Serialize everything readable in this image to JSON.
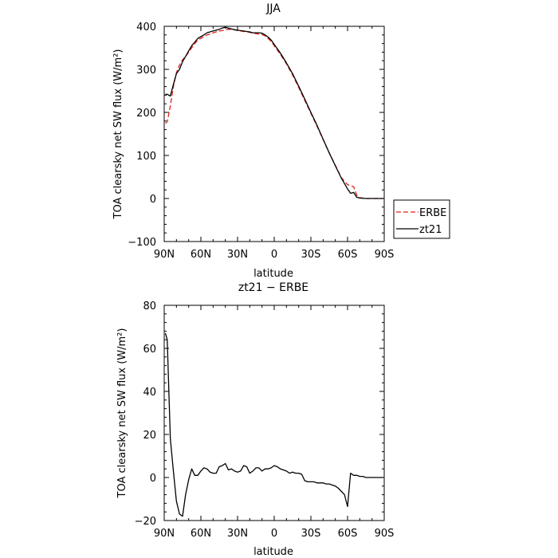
{
  "chart_data": [
    {
      "type": "line",
      "title": "JJA",
      "xlabel": "latitude",
      "ylabel": "TOA clearsky net SW flux (W/m²)",
      "ylim": [
        -100,
        400
      ],
      "xlim": [
        90,
        -90
      ],
      "x_ticks": [
        90,
        60,
        30,
        0,
        -30,
        -60,
        -90
      ],
      "x_tick_labels": [
        "90N",
        "60N",
        "30N",
        "0",
        "30S",
        "60S",
        "90S"
      ],
      "y_ticks": [
        -100,
        0,
        100,
        200,
        300,
        400
      ],
      "y_tick_labels": [
        "−100",
        "0",
        "100",
        "200",
        "300",
        "400"
      ],
      "legend_position": "right-outside",
      "series": [
        {
          "name": "ERBE",
          "color": "#e0201b",
          "dash": "dashed",
          "x": [
            89,
            87.5,
            85,
            82.5,
            80,
            77.5,
            75,
            72.5,
            70,
            67.5,
            65,
            62.5,
            60,
            57.5,
            55,
            52.5,
            50,
            47.5,
            45,
            42.5,
            40,
            37.5,
            35,
            32.5,
            30,
            27.5,
            25,
            22.5,
            20,
            17.5,
            15,
            12.5,
            10,
            7.5,
            5,
            2.5,
            0,
            -5,
            -10,
            -15,
            -20,
            -25,
            -30,
            -35,
            -40,
            -45,
            -50,
            -55,
            -60,
            -62.5,
            -65,
            -67.5,
            -70,
            -75,
            -80,
            -85,
            -89
          ],
          "y": [
            175,
            178,
            215,
            260,
            292,
            310,
            322,
            330,
            340,
            350,
            360,
            368,
            372,
            376,
            380,
            382,
            385,
            387,
            389,
            390,
            392,
            393,
            393,
            392,
            390,
            389,
            388,
            387,
            386,
            384,
            383,
            382,
            381,
            378,
            372,
            365,
            355,
            335,
            313,
            287,
            258,
            228,
            198,
            168,
            137,
            106,
            77,
            48,
            32,
            30,
            27,
            8,
            2,
            0,
            0,
            0,
            0
          ]
        },
        {
          "name": "zt21",
          "color": "#000000",
          "dash": "solid",
          "x": [
            89,
            87.5,
            85,
            82.5,
            80,
            77.5,
            75,
            72.5,
            70,
            67.5,
            65,
            62.5,
            60,
            57.5,
            55,
            52.5,
            50,
            47.5,
            45,
            42.5,
            40,
            37.5,
            35,
            32.5,
            30,
            27.5,
            25,
            22.5,
            20,
            17.5,
            15,
            12.5,
            10,
            7.5,
            5,
            2.5,
            0,
            -5,
            -10,
            -15,
            -20,
            -25,
            -30,
            -35,
            -40,
            -45,
            -50,
            -55,
            -60,
            -62.5,
            -65,
            -67.5,
            -70,
            -75,
            -80,
            -85,
            -89
          ],
          "y": [
            242,
            242,
            238,
            265,
            290,
            300,
            318,
            330,
            343,
            355,
            363,
            372,
            376,
            380,
            385,
            387,
            389,
            391,
            393,
            396,
            398,
            396,
            394,
            392,
            391,
            390,
            389,
            388,
            387,
            385,
            385,
            385,
            384,
            380,
            375,
            368,
            358,
            338,
            315,
            290,
            261,
            231,
            200,
            170,
            138,
            106,
            76,
            47,
            22,
            12,
            14,
            3,
            1,
            0,
            0,
            0,
            0
          ]
        }
      ]
    },
    {
      "type": "line",
      "title": "zt21 − ERBE",
      "xlabel": "latitude",
      "ylabel": "TOA clearsky net SW flux (W/m²)",
      "ylim": [
        -20,
        80
      ],
      "xlim": [
        90,
        -90
      ],
      "x_ticks": [
        90,
        60,
        30,
        0,
        -30,
        -60,
        -90
      ],
      "x_tick_labels": [
        "90N",
        "60N",
        "30N",
        "0",
        "30S",
        "60S",
        "90S"
      ],
      "y_ticks": [
        -20,
        0,
        20,
        40,
        60,
        80
      ],
      "y_tick_labels": [
        "−20",
        "0",
        "20",
        "40",
        "60",
        "80"
      ],
      "series": [
        {
          "color": "#000000",
          "dash": "solid",
          "x": [
            89,
            87.5,
            85,
            82.5,
            80,
            77.5,
            75,
            72.5,
            70,
            67.5,
            65,
            62.5,
            60,
            57.5,
            55,
            52.5,
            50,
            47.5,
            45,
            42.5,
            40,
            37.5,
            35,
            32.5,
            30,
            27.5,
            25,
            22.5,
            20,
            17.5,
            15,
            12.5,
            10,
            7.5,
            5,
            2.5,
            0,
            -2.5,
            -5,
            -7.5,
            -10,
            -12.5,
            -15,
            -17.5,
            -20,
            -22.5,
            -25,
            -27.5,
            -30,
            -32.5,
            -35,
            -37.5,
            -40,
            -42.5,
            -45,
            -47.5,
            -50,
            -52.5,
            -55,
            -57.5,
            -60,
            -62.5,
            -65,
            -67.5,
            -70,
            -72.5,
            -75,
            -77.5,
            -80,
            -82.5,
            -85,
            -87.5,
            -89
          ],
          "y": [
            67,
            64,
            18,
            3,
            -11,
            -17,
            -18,
            -8,
            -1,
            4,
            1,
            1,
            3,
            4.5,
            4,
            2.5,
            2,
            2,
            5,
            5.5,
            6.5,
            3.5,
            4,
            3,
            2.5,
            3,
            5.5,
            5,
            2,
            3,
            4.5,
            4.5,
            3,
            4,
            4,
            4.5,
            5.5,
            5,
            4,
            3.5,
            3,
            2,
            2.5,
            2,
            2,
            1.5,
            -1.5,
            -2,
            -2,
            -2,
            -2.5,
            -2.5,
            -2.5,
            -3,
            -3,
            -3.5,
            -4,
            -5,
            -6.5,
            -8,
            -13.5,
            2,
            1,
            1,
            0.5,
            0.5,
            0,
            0,
            0,
            0,
            0,
            0,
            0
          ]
        }
      ]
    }
  ]
}
